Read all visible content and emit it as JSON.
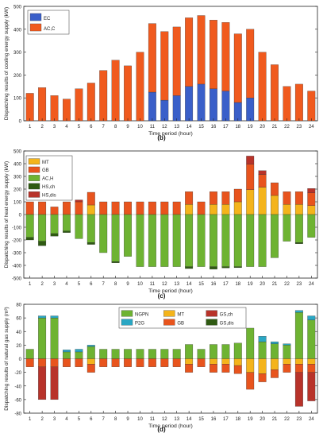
{
  "chart_data": [
    {
      "type": "bar",
      "stacked": true,
      "panel_label": "(b)",
      "xlabel": "Time period (hour)",
      "ylabel": "Dispatching results of cooling energy supply (kW)",
      "ylim": [
        0,
        500
      ],
      "yticks": [
        0,
        100,
        200,
        300,
        400,
        500
      ],
      "categories": [
        "1",
        "2",
        "3",
        "4",
        "5",
        "6",
        "7",
        "8",
        "9",
        "10",
        "11",
        "12",
        "13",
        "14",
        "15",
        "16",
        "17",
        "18",
        "19",
        "20",
        "21",
        "22",
        "23",
        "24"
      ],
      "legend_position": "top-left",
      "series": [
        {
          "name": "EC",
          "color": "#3a5fc9",
          "values": [
            0,
            0,
            0,
            0,
            0,
            0,
            0,
            0,
            0,
            0,
            125,
            90,
            110,
            150,
            160,
            140,
            130,
            80,
            100,
            0,
            0,
            0,
            0,
            0
          ]
        },
        {
          "name": "AC,C",
          "color": "#f05a1e",
          "values": [
            120,
            145,
            110,
            95,
            140,
            165,
            220,
            265,
            240,
            300,
            300,
            300,
            300,
            300,
            300,
            300,
            300,
            300,
            300,
            300,
            245,
            150,
            160,
            130
          ]
        }
      ]
    },
    {
      "type": "bar",
      "stacked": true,
      "panel_label": "(c)",
      "xlabel": "Time period (hour)",
      "ylabel": "Dispatching results of heat energy supply (kW)",
      "ylim": [
        -500,
        500
      ],
      "yticks": [
        -500,
        -400,
        -300,
        -200,
        -100,
        0,
        100,
        200,
        300,
        400,
        500
      ],
      "categories": [
        "1",
        "2",
        "3",
        "4",
        "5",
        "6",
        "7",
        "8",
        "9",
        "10",
        "11",
        "12",
        "13",
        "14",
        "15",
        "16",
        "17",
        "18",
        "19",
        "20",
        "21",
        "22",
        "23",
        "24"
      ],
      "legend_position": "top-left",
      "series": [
        {
          "name": "MT",
          "color": "#f4b41b",
          "values": [
            0,
            0,
            0,
            0,
            0,
            75,
            0,
            0,
            0,
            0,
            0,
            0,
            0,
            80,
            0,
            80,
            80,
            100,
            195,
            215,
            150,
            80,
            80,
            70
          ]
        },
        {
          "name": "GB",
          "color": "#e8541d",
          "values": [
            100,
            100,
            60,
            100,
            100,
            100,
            100,
            100,
            100,
            100,
            100,
            100,
            100,
            100,
            100,
            100,
            100,
            100,
            200,
            100,
            100,
            100,
            100,
            100
          ]
        },
        {
          "name": "AC,H",
          "color": "#6eb332",
          "values": [
            -180,
            -210,
            -150,
            -130,
            -190,
            -220,
            -300,
            -370,
            -330,
            -410,
            -410,
            -410,
            -410,
            -410,
            -410,
            -410,
            -410,
            -410,
            -410,
            -410,
            -340,
            -210,
            -220,
            -180
          ]
        },
        {
          "name": "HS,ch",
          "color": "#2f5a12",
          "values": [
            -20,
            -35,
            -20,
            -12,
            0,
            -15,
            0,
            -10,
            0,
            0,
            0,
            0,
            0,
            -15,
            0,
            -20,
            -10,
            -8,
            0,
            0,
            0,
            0,
            -10,
            0
          ]
        },
        {
          "name": "HS,dis",
          "color": "#b8332a",
          "values": [
            0,
            0,
            0,
            0,
            15,
            0,
            0,
            0,
            0,
            0,
            0,
            0,
            0,
            0,
            0,
            0,
            0,
            0,
            65,
            30,
            0,
            0,
            0,
            35
          ]
        }
      ]
    },
    {
      "type": "bar",
      "stacked": true,
      "panel_label": "(d)",
      "xlabel": "Time period (hour)",
      "ylabel": "Dispatching results of natural gas supply (m³)",
      "ylim": [
        -80,
        80
      ],
      "yticks": [
        -80,
        -60,
        -40,
        -20,
        0,
        20,
        40,
        60,
        80
      ],
      "categories": [
        "1",
        "2",
        "3",
        "4",
        "5",
        "6",
        "7",
        "8",
        "9",
        "10",
        "11",
        "12",
        "13",
        "14",
        "15",
        "16",
        "17",
        "18",
        "19",
        "20",
        "21",
        "22",
        "23",
        "24"
      ],
      "legend_position": "top-center",
      "series": [
        {
          "name": "NGPN",
          "color": "#6eb332",
          "values": [
            14,
            60,
            60,
            10,
            10,
            18,
            14,
            14,
            14,
            14,
            14,
            14,
            14,
            21,
            14,
            21,
            21,
            23,
            45,
            25,
            22,
            20,
            68,
            57
          ]
        },
        {
          "name": "P2G",
          "color": "#2aa7c4",
          "values": [
            0,
            3,
            3,
            3,
            4,
            2,
            0,
            0,
            0,
            0,
            0,
            0,
            0,
            0,
            0,
            0,
            0,
            0,
            0,
            8,
            3,
            2,
            3,
            6
          ]
        },
        {
          "name": "MT",
          "color": "#f4b41b",
          "values": [
            0,
            0,
            0,
            0,
            0,
            -8,
            0,
            0,
            0,
            0,
            0,
            0,
            0,
            -8,
            0,
            -8,
            -8,
            -10,
            -20,
            -22,
            -16,
            -8,
            -8,
            -8
          ]
        },
        {
          "name": "GB",
          "color": "#e8541d",
          "values": [
            -12,
            -12,
            -12,
            -12,
            -12,
            -12,
            -12,
            -12,
            -12,
            -12,
            -12,
            -12,
            -12,
            -12,
            -12,
            -12,
            -12,
            -12,
            -25,
            -12,
            -12,
            -12,
            -12,
            -12
          ]
        },
        {
          "name": "GS,ch",
          "color": "#b8332a",
          "values": [
            0,
            -48,
            -48,
            0,
            0,
            0,
            0,
            0,
            0,
            0,
            0,
            0,
            0,
            0,
            0,
            0,
            0,
            0,
            0,
            0,
            0,
            0,
            -50,
            -42
          ]
        },
        {
          "name": "GS,dis",
          "color": "#2f5a12",
          "values": [
            0,
            0,
            0,
            0,
            0,
            0,
            0,
            0,
            0,
            0,
            0,
            0,
            0,
            0,
            0,
            0,
            0,
            0,
            0,
            0,
            0,
            0,
            0,
            0
          ]
        }
      ]
    }
  ]
}
